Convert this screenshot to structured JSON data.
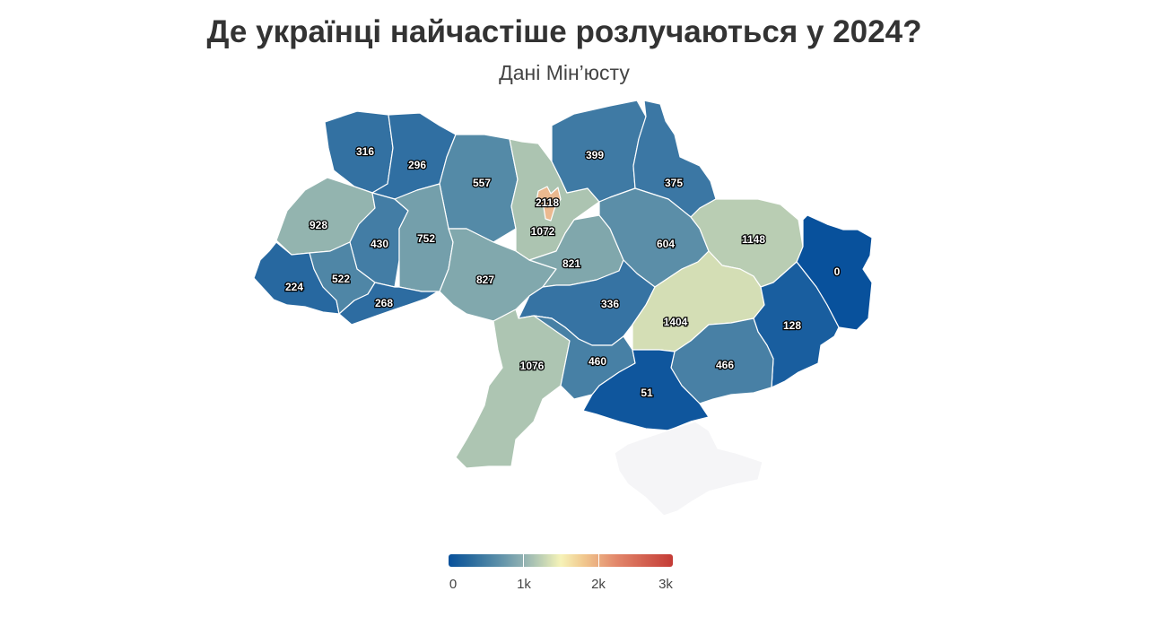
{
  "title": "Де українці найчастіше розлучаються у 2024?",
  "subtitle": "Дані Мін’юсту",
  "legend": {
    "labels": [
      "0",
      "1k",
      "2k",
      "3k"
    ],
    "min": 0,
    "max": 3000,
    "colors": [
      "#08519c",
      "#5a8ea8",
      "#c2d3b4",
      "#f6f3b8",
      "#e2866a",
      "#c43b36"
    ]
  },
  "map_data": {
    "regions": [
      {
        "id": "volyn",
        "value": 316
      },
      {
        "id": "rivne",
        "value": 296
      },
      {
        "id": "zhytomyr",
        "value": 557
      },
      {
        "id": "kyiv-oblast",
        "value": 1072
      },
      {
        "id": "kyiv-city",
        "value": 2118
      },
      {
        "id": "chernihiv",
        "value": 399
      },
      {
        "id": "sumy",
        "value": 375
      },
      {
        "id": "lviv",
        "value": 928
      },
      {
        "id": "ternopil",
        "value": 430
      },
      {
        "id": "khmelnytskyi",
        "value": 752
      },
      {
        "id": "vinnytsia",
        "value": 827
      },
      {
        "id": "cherkasy",
        "value": 821
      },
      {
        "id": "poltava",
        "value": 604
      },
      {
        "id": "kharkiv",
        "value": 1148
      },
      {
        "id": "luhansk",
        "value": 0
      },
      {
        "id": "zakarpattia",
        "value": 224
      },
      {
        "id": "ivano-frankivsk",
        "value": 522
      },
      {
        "id": "chernivtsi",
        "value": 268
      },
      {
        "id": "kirovohrad",
        "value": 336
      },
      {
        "id": "dnipropetrovsk",
        "value": 1404
      },
      {
        "id": "donetsk",
        "value": 128
      },
      {
        "id": "odesa",
        "value": 1076
      },
      {
        "id": "mykolaiv",
        "value": 460
      },
      {
        "id": "zaporizhzhia",
        "value": 466
      },
      {
        "id": "kherson",
        "value": 51
      },
      {
        "id": "crimea",
        "value": null
      }
    ]
  }
}
